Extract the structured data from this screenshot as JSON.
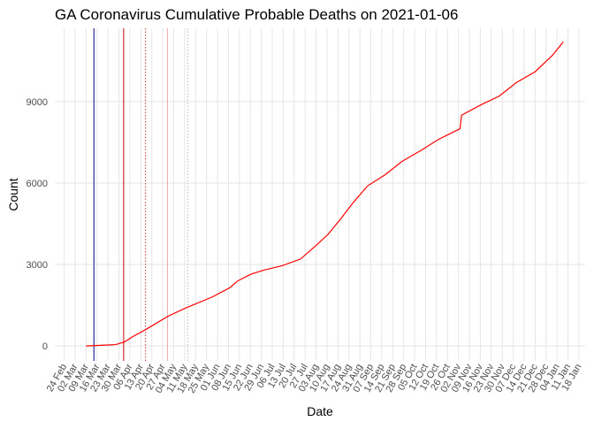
{
  "chart_data": {
    "type": "line",
    "title": "GA Coronavirus Cumulative Probable Deaths on 2021-01-06",
    "x_label": "Date",
    "y_label": "Count",
    "x": [
      69,
      88,
      93.6,
      99,
      107,
      121.5,
      132.7,
      149.5,
      161,
      166,
      174.6,
      183,
      194,
      206,
      215,
      223.5,
      232,
      240,
      249,
      260,
      271,
      283,
      294,
      308,
      309,
      322,
      333,
      344,
      356,
      367,
      374
    ],
    "series": [
      {
        "color": "#ff0000",
        "values": [
          0,
          50,
          150,
          350,
          600,
          1100,
          1400,
          1800,
          2150,
          2400,
          2650,
          2800,
          2950,
          3200,
          3650,
          4100,
          4700,
          5300,
          5900,
          6300,
          6800,
          7200,
          7600,
          8000,
          8500,
          8900,
          9200,
          9700,
          10100,
          10700,
          11200
        ]
      }
    ],
    "xlim": [
      49,
      388
    ],
    "ylim": [
      -550,
      11700
    ],
    "yticks": [
      0,
      3000,
      6000,
      9000
    ],
    "xticks": [
      {
        "value": 55,
        "label": "24 Feb"
      },
      {
        "value": 62,
        "label": "02 Mar"
      },
      {
        "value": 69,
        "label": "09 Mar"
      },
      {
        "value": 76,
        "label": "16 Mar"
      },
      {
        "value": 83,
        "label": "23 Mar"
      },
      {
        "value": 90,
        "label": "30 Mar"
      },
      {
        "value": 97,
        "label": "06 Apr"
      },
      {
        "value": 104,
        "label": "13 Apr"
      },
      {
        "value": 111,
        "label": "20 Apr"
      },
      {
        "value": 118,
        "label": "27 Apr"
      },
      {
        "value": 125,
        "label": "04 May"
      },
      {
        "value": 132,
        "label": "11 May"
      },
      {
        "value": 139,
        "label": "18 May"
      },
      {
        "value": 146,
        "label": "25 May"
      },
      {
        "value": 153,
        "label": "01 Jun"
      },
      {
        "value": 160,
        "label": "08 Jun"
      },
      {
        "value": 167,
        "label": "15 Jun"
      },
      {
        "value": 174,
        "label": "22 Jun"
      },
      {
        "value": 181,
        "label": "29 Jun"
      },
      {
        "value": 188,
        "label": "06 Jul"
      },
      {
        "value": 195,
        "label": "13 Jul"
      },
      {
        "value": 202,
        "label": "20 Jul"
      },
      {
        "value": 209,
        "label": "27 Jul"
      },
      {
        "value": 216,
        "label": "03 Aug"
      },
      {
        "value": 223,
        "label": "10 Aug"
      },
      {
        "value": 230,
        "label": "17 Aug"
      },
      {
        "value": 237,
        "label": "24 Aug"
      },
      {
        "value": 244,
        "label": "31 Aug"
      },
      {
        "value": 251,
        "label": "07 Sep"
      },
      {
        "value": 258,
        "label": "14 Sep"
      },
      {
        "value": 265,
        "label": "21 Sep"
      },
      {
        "value": 272,
        "label": "28 Sep"
      },
      {
        "value": 279,
        "label": "05 Oct"
      },
      {
        "value": 286,
        "label": "12 Oct"
      },
      {
        "value": 293,
        "label": "19 Oct"
      },
      {
        "value": 300,
        "label": "26 Oct"
      },
      {
        "value": 307,
        "label": "02 Nov"
      },
      {
        "value": 314,
        "label": "09 Nov"
      },
      {
        "value": 321,
        "label": "16 Nov"
      },
      {
        "value": 328,
        "label": "23 Nov"
      },
      {
        "value": 335,
        "label": "30 Nov"
      },
      {
        "value": 342,
        "label": "07 Dec"
      },
      {
        "value": 349,
        "label": "14 Dec"
      },
      {
        "value": 356,
        "label": "21 Dec"
      },
      {
        "value": 363,
        "label": "28 Dec"
      },
      {
        "value": 370,
        "label": "04 Jan"
      },
      {
        "value": 377,
        "label": "11 Jan"
      },
      {
        "value": 384,
        "label": "18 Jan"
      }
    ],
    "vlines": [
      {
        "x": 74,
        "color": "#00008b",
        "style": "solid"
      },
      {
        "x": 93,
        "color": "#cc0000",
        "style": "solid"
      },
      {
        "x": 107,
        "color": "#cc3333",
        "style": "dotted"
      },
      {
        "x": 121,
        "color": "#f4a6a6",
        "style": "solid"
      },
      {
        "x": 134,
        "color": "#bbbbbb",
        "style": "dotted"
      }
    ],
    "grid": true
  }
}
